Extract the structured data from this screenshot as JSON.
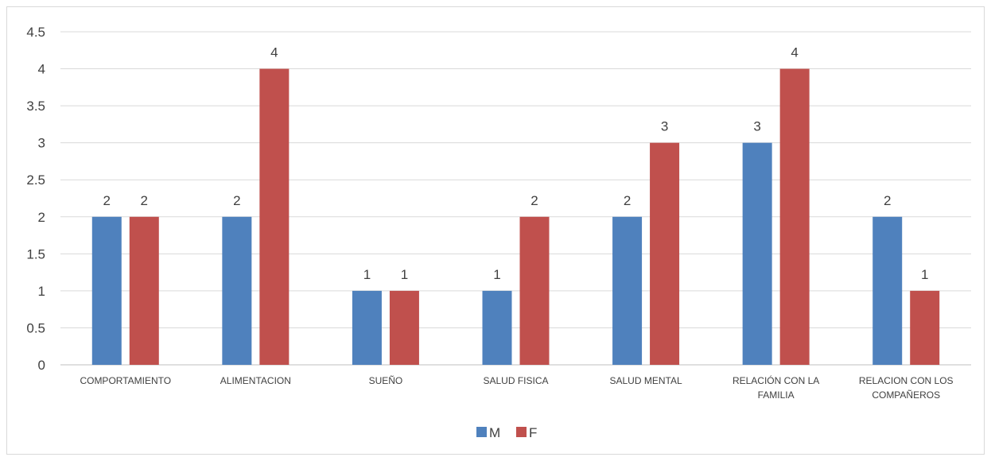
{
  "chart_data": {
    "type": "bar",
    "title": "",
    "xlabel": "",
    "ylabel": "",
    "categories": [
      [
        "COMPORTAMIENTO"
      ],
      [
        "ALIMENTACION"
      ],
      [
        "SUEÑO"
      ],
      [
        "SALUD FISICA"
      ],
      [
        "SALUD MENTAL"
      ],
      [
        "RELACIÓN CON LA",
        "FAMILIA"
      ],
      [
        "RELACION CON LOS",
        "COMPAÑEROS"
      ]
    ],
    "series": [
      {
        "name": "M",
        "color": "#4f81bd",
        "values": [
          2,
          2,
          1,
          1,
          2,
          3,
          2
        ]
      },
      {
        "name": "F",
        "color": "#c0504d",
        "values": [
          2,
          4,
          1,
          2,
          3,
          4,
          1
        ]
      }
    ],
    "ylim": [
      0,
      4.5
    ],
    "yticks": [
      "0",
      "0.5",
      "1",
      "1.5",
      "2",
      "2.5",
      "3",
      "3.5",
      "4",
      "4.5"
    ],
    "grid": true,
    "data_labels": true,
    "legend": "bottom-center"
  }
}
